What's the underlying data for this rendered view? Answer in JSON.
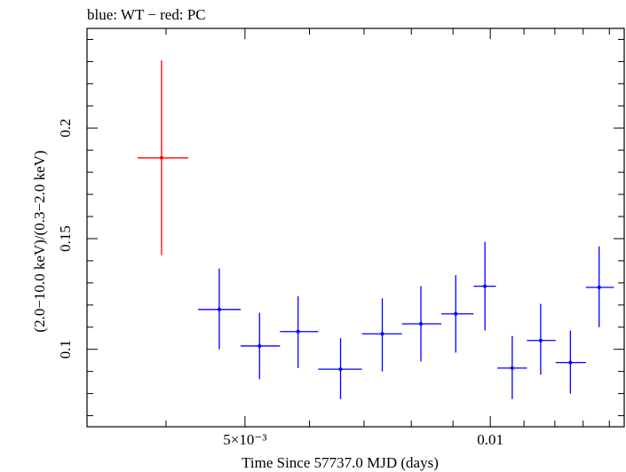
{
  "chart_data": {
    "type": "scatter",
    "title": "blue: WT − red: PC",
    "xlabel": "Time Since 57737.0 MJD (days)",
    "ylabel": "(2.0−10.0 keV)/(0.3−2.0 keV)",
    "x_scale": "log",
    "xlim": [
      0.0032,
      0.0146
    ],
    "ylim": [
      0.065,
      0.245
    ],
    "x_ticks": [
      {
        "value": 0.005,
        "label": "5×10⁻³"
      },
      {
        "value": 0.01,
        "label": "0.01"
      }
    ],
    "y_ticks": [
      {
        "value": 0.1,
        "label": "0.1"
      },
      {
        "value": 0.15,
        "label": "0.15"
      },
      {
        "value": 0.2,
        "label": "0.2"
      }
    ],
    "series": [
      {
        "name": "PC",
        "color": "#ff0000",
        "points": [
          {
            "x": 0.00395,
            "xlo": 0.00369,
            "xhi": 0.00426,
            "y": 0.1865,
            "ylo": 0.1425,
            "yhi": 0.2305
          }
        ]
      },
      {
        "name": "WT",
        "color": "#0000ff",
        "points": [
          {
            "x": 0.00465,
            "xlo": 0.00438,
            "xhi": 0.00494,
            "y": 0.118,
            "ylo": 0.1,
            "yhi": 0.1365
          },
          {
            "x": 0.00521,
            "xlo": 0.00494,
            "xhi": 0.00552,
            "y": 0.1015,
            "ylo": 0.0865,
            "yhi": 0.1165
          },
          {
            "x": 0.00581,
            "xlo": 0.00552,
            "xhi": 0.00615,
            "y": 0.108,
            "ylo": 0.0915,
            "yhi": 0.124
          },
          {
            "x": 0.00655,
            "xlo": 0.00615,
            "xhi": 0.00696,
            "y": 0.091,
            "ylo": 0.0775,
            "yhi": 0.105
          },
          {
            "x": 0.00737,
            "xlo": 0.00696,
            "xhi": 0.00779,
            "y": 0.107,
            "ylo": 0.09,
            "yhi": 0.123
          },
          {
            "x": 0.00822,
            "xlo": 0.00779,
            "xhi": 0.00871,
            "y": 0.1115,
            "ylo": 0.0945,
            "yhi": 0.1285
          },
          {
            "x": 0.00907,
            "xlo": 0.00871,
            "xhi": 0.00954,
            "y": 0.116,
            "ylo": 0.0985,
            "yhi": 0.1335
          },
          {
            "x": 0.00985,
            "xlo": 0.00954,
            "xhi": 0.01016,
            "y": 0.1285,
            "ylo": 0.1085,
            "yhi": 0.1485
          },
          {
            "x": 0.01064,
            "xlo": 0.0102,
            "xhi": 0.01109,
            "y": 0.0915,
            "ylo": 0.0775,
            "yhi": 0.106
          },
          {
            "x": 0.01153,
            "xlo": 0.01109,
            "xhi": 0.01203,
            "y": 0.104,
            "ylo": 0.0885,
            "yhi": 0.1205
          },
          {
            "x": 0.01254,
            "xlo": 0.01203,
            "xhi": 0.0131,
            "y": 0.094,
            "ylo": 0.08,
            "yhi": 0.1085
          },
          {
            "x": 0.0136,
            "xlo": 0.0131,
            "xhi": 0.01418,
            "y": 0.128,
            "ylo": 0.11,
            "yhi": 0.1465
          }
        ]
      }
    ]
  }
}
